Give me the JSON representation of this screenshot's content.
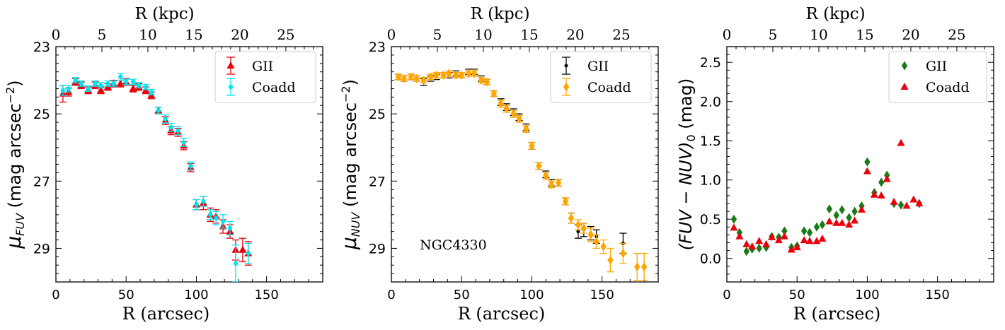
{
  "colors": {
    "gii_fuv": "#e8000b",
    "coadd_fuv": "#00e5ee",
    "gii_nuv": "#000000",
    "coadd_nuv": "#ffa500",
    "gii_color": "#1a7a1a",
    "coadd_color": "#e8000b",
    "axis": "#000000"
  },
  "chart_data": [
    {
      "type": "scatter",
      "panel": "fuv",
      "xlabel": "R (arcsec)",
      "ylabel_main": "μ",
      "ylabel_sub": "FUV",
      "ylabel_rest": " (mag arcsec",
      "ylabel_sup": "−2",
      "ylabel_close": ")",
      "top_xlabel": "R (kpc)",
      "xlim": [
        0,
        190
      ],
      "ylim": [
        30.0,
        23.0
      ],
      "x_ticks": [
        "0",
        "50",
        "100",
        "150"
      ],
      "y_ticks": [
        "23",
        "25",
        "27",
        "29"
      ],
      "top_ticks": [
        "0",
        "5",
        "10",
        "15",
        "20",
        "25"
      ],
      "kpc_scale": 6.55,
      "legend": [
        "GII",
        "Coadd"
      ],
      "legend_position": "top-right",
      "series": [
        {
          "name": "GII",
          "marker": "triangle",
          "color": "#e8000b",
          "x": [
            5,
            9,
            14,
            18,
            23,
            28,
            32,
            37,
            41,
            46,
            50,
            55,
            59,
            64,
            68,
            73,
            78,
            82,
            87,
            91,
            96,
            100,
            105,
            110,
            114,
            119,
            124,
            128,
            133,
            137
          ],
          "y": [
            24.4,
            24.35,
            24.05,
            24.15,
            24.3,
            24.15,
            24.3,
            24.2,
            24.1,
            24.1,
            24.05,
            24.25,
            24.2,
            24.3,
            24.45,
            24.9,
            25.2,
            25.5,
            25.55,
            25.95,
            26.6,
            27.7,
            27.65,
            28.0,
            28.05,
            28.35,
            28.5,
            29.05,
            29.05,
            29.15
          ],
          "err": [
            0.25,
            0.12,
            0.1,
            0.1,
            0.1,
            0.1,
            0.1,
            0.1,
            0.1,
            0.1,
            0.1,
            0.1,
            0.1,
            0.1,
            0.1,
            0.1,
            0.12,
            0.12,
            0.12,
            0.12,
            0.12,
            0.15,
            0.2,
            0.2,
            0.2,
            0.2,
            0.2,
            0.3,
            0.35,
            0.35
          ]
        },
        {
          "name": "Coadd",
          "marker": "circle",
          "color": "#00e5ee",
          "x": [
            5,
            9,
            14,
            18,
            23,
            28,
            32,
            37,
            41,
            46,
            50,
            55,
            59,
            64,
            68,
            73,
            78,
            82,
            87,
            91,
            96,
            100,
            105,
            110,
            114,
            119,
            124,
            128,
            137
          ],
          "y": [
            24.3,
            24.25,
            24.0,
            24.1,
            24.25,
            24.1,
            24.15,
            24.1,
            24.1,
            23.9,
            24.05,
            24.05,
            24.15,
            24.2,
            24.35,
            24.9,
            25.15,
            25.4,
            25.5,
            25.85,
            26.55,
            27.7,
            27.6,
            28.0,
            28.1,
            28.2,
            28.4,
            29.45,
            29.15
          ],
          "err": [
            0.15,
            0.1,
            0.08,
            0.08,
            0.08,
            0.08,
            0.08,
            0.08,
            0.08,
            0.1,
            0.08,
            0.08,
            0.08,
            0.08,
            0.08,
            0.1,
            0.12,
            0.12,
            0.12,
            0.12,
            0.12,
            0.15,
            0.15,
            0.15,
            0.2,
            0.2,
            0.2,
            0.55,
            0.3
          ]
        }
      ]
    },
    {
      "type": "scatter",
      "panel": "nuv",
      "xlabel": "R (arcsec)",
      "ylabel_main": "μ",
      "ylabel_sub": "NUV",
      "ylabel_rest": " (mag arcsec",
      "ylabel_sup": "−2",
      "ylabel_close": ")",
      "top_xlabel": "R (kpc)",
      "annotation": "NGC4330",
      "xlim": [
        0,
        190
      ],
      "ylim": [
        30.0,
        23.0
      ],
      "x_ticks": [
        "0",
        "50",
        "100",
        "150"
      ],
      "y_ticks": [
        "23",
        "25",
        "27",
        "29"
      ],
      "top_ticks": [
        "0",
        "5",
        "10",
        "15",
        "20",
        "25"
      ],
      "kpc_scale": 6.55,
      "legend": [
        "GII",
        "Coadd"
      ],
      "legend_position": "top-right",
      "series": [
        {
          "name": "GII",
          "marker": "dot",
          "color": "#000000",
          "x": [
            5,
            9,
            14,
            18,
            23,
            28,
            32,
            37,
            41,
            46,
            50,
            55,
            59,
            64,
            68,
            73,
            78,
            82,
            87,
            91,
            96,
            100,
            105,
            110,
            114,
            119,
            124,
            128,
            133,
            137,
            142,
            146,
            165
          ],
          "y": [
            23.9,
            23.95,
            23.9,
            23.95,
            24.05,
            23.95,
            23.9,
            23.85,
            23.85,
            23.8,
            23.85,
            23.75,
            23.75,
            23.95,
            24.05,
            24.4,
            24.65,
            24.8,
            24.95,
            25.1,
            25.4,
            25.95,
            26.55,
            26.8,
            27.05,
            27.05,
            27.6,
            28.1,
            28.5,
            28.45,
            28.55,
            28.65,
            28.85
          ],
          "err": [
            0.08,
            0.08,
            0.08,
            0.08,
            0.1,
            0.08,
            0.08,
            0.08,
            0.08,
            0.08,
            0.08,
            0.08,
            0.08,
            0.08,
            0.08,
            0.08,
            0.1,
            0.1,
            0.1,
            0.1,
            0.1,
            0.1,
            0.1,
            0.1,
            0.1,
            0.1,
            0.1,
            0.15,
            0.2,
            0.2,
            0.2,
            0.2,
            0.3
          ]
        },
        {
          "name": "Coadd",
          "marker": "diamond",
          "color": "#ffa500",
          "x": [
            5,
            9,
            14,
            18,
            23,
            28,
            32,
            37,
            41,
            46,
            50,
            55,
            59,
            64,
            68,
            73,
            78,
            82,
            87,
            91,
            96,
            100,
            105,
            110,
            114,
            119,
            124,
            128,
            133,
            137,
            142,
            146,
            151,
            156,
            165,
            175,
            180
          ],
          "y": [
            23.9,
            23.95,
            23.9,
            23.95,
            24.0,
            23.9,
            23.85,
            23.85,
            23.8,
            23.85,
            23.85,
            23.8,
            23.8,
            24.0,
            24.05,
            24.4,
            24.7,
            24.85,
            25.0,
            25.15,
            25.45,
            25.95,
            26.55,
            26.85,
            27.1,
            27.05,
            27.6,
            28.1,
            28.3,
            28.4,
            28.6,
            28.8,
            28.95,
            29.35,
            29.15,
            29.55,
            29.55
          ],
          "err": [
            0.08,
            0.08,
            0.08,
            0.08,
            0.08,
            0.08,
            0.08,
            0.08,
            0.08,
            0.08,
            0.08,
            0.08,
            0.08,
            0.08,
            0.08,
            0.08,
            0.1,
            0.1,
            0.1,
            0.1,
            0.1,
            0.1,
            0.1,
            0.1,
            0.1,
            0.1,
            0.1,
            0.15,
            0.15,
            0.15,
            0.2,
            0.2,
            0.2,
            0.35,
            0.3,
            0.4,
            0.4
          ]
        }
      ]
    },
    {
      "type": "scatter",
      "panel": "color",
      "xlabel": "R (arcsec)",
      "ylabel_main": "(FUV − NUV)",
      "ylabel_sub": "0",
      "ylabel_rest": " (mag)",
      "top_xlabel": "R (kpc)",
      "xlim": [
        0,
        190
      ],
      "ylim": [
        -0.3,
        2.7
      ],
      "x_ticks": [
        "0",
        "50",
        "100",
        "150"
      ],
      "y_ticks": [
        "0.0",
        "0.5",
        "1.0",
        "1.5",
        "2.0",
        "2.5"
      ],
      "top_ticks": [
        "0",
        "5",
        "10",
        "15",
        "20",
        "25"
      ],
      "kpc_scale": 6.55,
      "legend": [
        "GII",
        "Coadd"
      ],
      "legend_position": "top-right",
      "series": [
        {
          "name": "GII",
          "marker": "diamond",
          "color": "#1a7a1a",
          "x": [
            5,
            9,
            14,
            18,
            23,
            28,
            32,
            37,
            41,
            46,
            50,
            55,
            59,
            64,
            68,
            73,
            78,
            82,
            87,
            91,
            96,
            100,
            105,
            110,
            114,
            119,
            124,
            137
          ],
          "y": [
            0.5,
            0.33,
            0.09,
            0.12,
            0.13,
            0.14,
            0.28,
            0.27,
            0.35,
            0.14,
            0.16,
            0.35,
            0.33,
            0.4,
            0.43,
            0.63,
            0.55,
            0.62,
            0.52,
            0.6,
            0.67,
            1.23,
            0.84,
            0.97,
            1.06,
            0.7,
            0.68,
            0.7
          ]
        },
        {
          "name": "Coadd",
          "marker": "triangle",
          "color": "#e8000b",
          "x": [
            5,
            9,
            14,
            18,
            23,
            28,
            32,
            37,
            41,
            46,
            50,
            55,
            59,
            64,
            68,
            73,
            78,
            82,
            87,
            91,
            96,
            100,
            105,
            110,
            114,
            119,
            124,
            128,
            133,
            137
          ],
          "y": [
            0.39,
            0.28,
            0.18,
            0.15,
            0.22,
            0.18,
            0.27,
            0.23,
            0.28,
            0.11,
            0.14,
            0.23,
            0.22,
            0.22,
            0.25,
            0.47,
            0.45,
            0.45,
            0.43,
            0.48,
            0.62,
            1.11,
            0.81,
            0.8,
            1.01,
            0.72,
            1.47,
            0.67,
            0.75,
            0.7
          ]
        }
      ]
    }
  ]
}
